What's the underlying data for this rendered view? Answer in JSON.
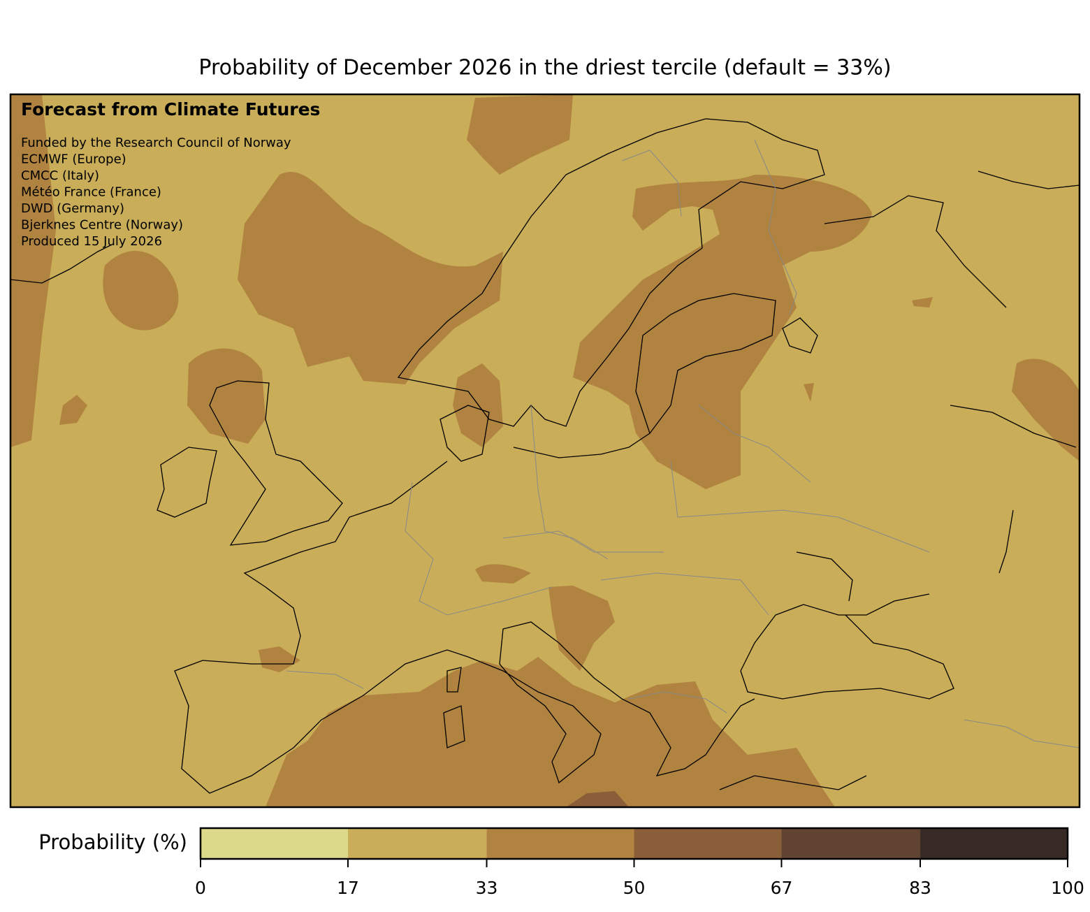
{
  "title": "Probability of December 2026 in the driest tercile (default = 33%)",
  "annotation": {
    "heading": "Forecast from Climate Futures",
    "lines": [
      "Funded by the Research Council of Norway",
      "ECMWF (Europe)",
      "CMCC (Italy)",
      "Météo France (France)",
      "DWD (Germany)",
      "Bjerknes Centre (Norway)",
      "Produced 15 July 2026"
    ]
  },
  "colorbar": {
    "label": "Probability (%)",
    "ticks": [
      0,
      17,
      33,
      50,
      67,
      83,
      100
    ],
    "colors": [
      "#dcd98b",
      "#c9ad58",
      "#b08340",
      "#8b5e3a",
      "#614331",
      "#372a24"
    ]
  }
}
